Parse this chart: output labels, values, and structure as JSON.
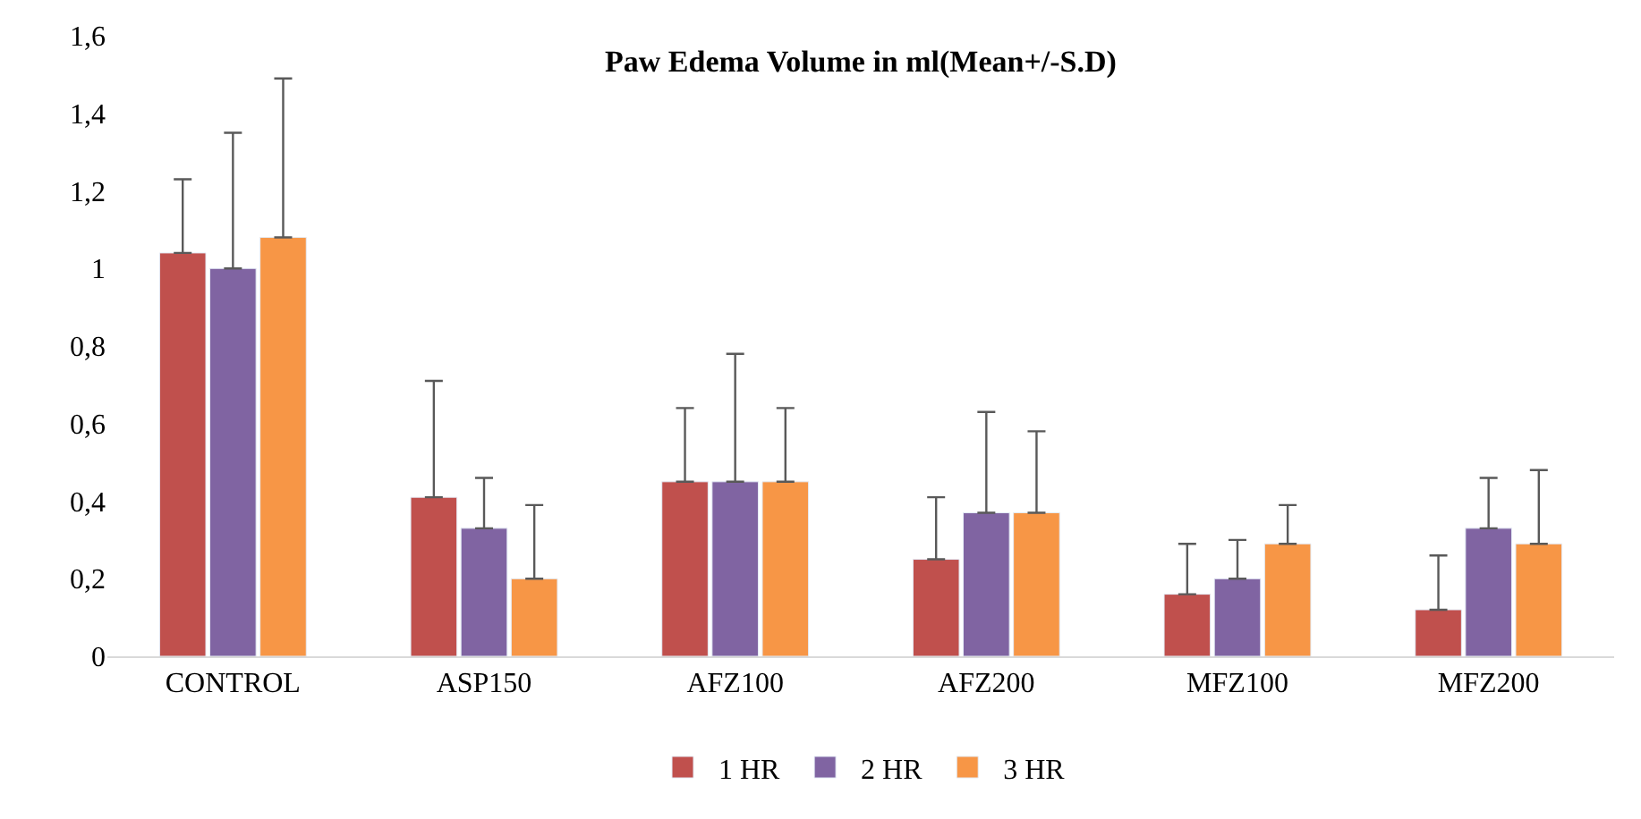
{
  "chart_data": {
    "type": "bar",
    "title": "Paw Edema Volume in ml(Mean+/-S.D)",
    "categories": [
      "CONTROL",
      "ASP150",
      "AFZ100",
      "AFZ200",
      "MFZ100",
      "MFZ200"
    ],
    "series": [
      {
        "name": "1 HR",
        "color": "#c0504d",
        "values": [
          1.04,
          0.41,
          0.45,
          0.25,
          0.16,
          0.12
        ],
        "errors": [
          [
            1.04,
            1.23
          ],
          [
            0.41,
            0.71
          ],
          [
            0.45,
            0.64
          ],
          [
            0.25,
            0.41
          ],
          [
            0.16,
            0.29
          ],
          [
            0.12,
            0.26
          ]
        ]
      },
      {
        "name": "2 HR",
        "color": "#8064a2",
        "values": [
          1.0,
          0.33,
          0.45,
          0.37,
          0.2,
          0.33
        ],
        "errors": [
          [
            1.0,
            1.35
          ],
          [
            0.33,
            0.46
          ],
          [
            0.45,
            0.78
          ],
          [
            0.37,
            0.63
          ],
          [
            0.2,
            0.3
          ],
          [
            0.33,
            0.46
          ]
        ]
      },
      {
        "name": "3 HR",
        "color": "#f79646",
        "values": [
          1.08,
          0.2,
          0.45,
          0.37,
          0.29,
          0.29
        ],
        "errors": [
          [
            1.08,
            1.49
          ],
          [
            0.2,
            0.39
          ],
          [
            0.45,
            0.64
          ],
          [
            0.37,
            0.58
          ],
          [
            0.29,
            0.39
          ],
          [
            0.29,
            0.48
          ]
        ]
      }
    ],
    "ylim": [
      0,
      1.6
    ],
    "yticks": [
      0,
      {
        "value": 0.2,
        "label": "0,2"
      },
      {
        "value": 0.4,
        "label": "0,4"
      },
      {
        "value": 0.6,
        "label": "0,6"
      },
      {
        "value": 0.8,
        "label": "0,8"
      },
      1,
      {
        "value": 1.2,
        "label": "1,2"
      },
      {
        "value": 1.4,
        "label": "1,4"
      },
      {
        "value": 1.6,
        "label": "1,6"
      }
    ],
    "grid": false,
    "legend": "bottom"
  }
}
